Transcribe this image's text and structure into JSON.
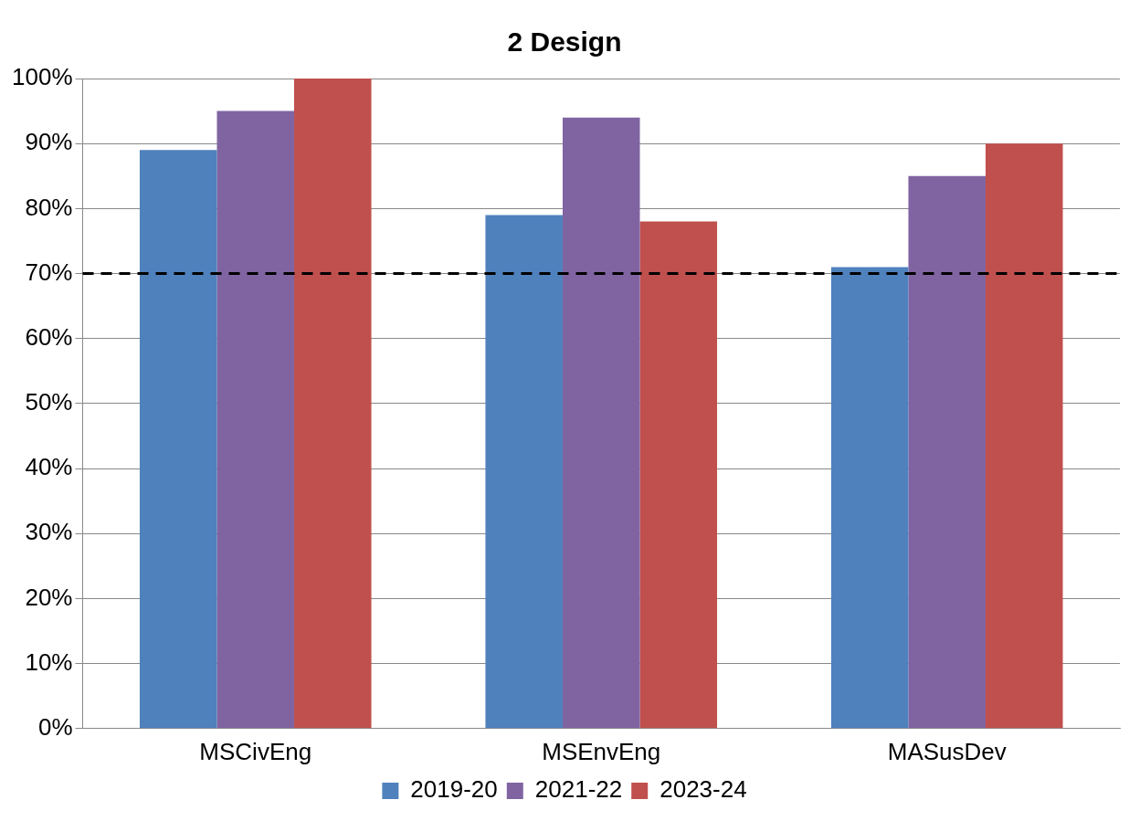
{
  "chart_data": {
    "type": "bar",
    "title": "2 Design",
    "categories": [
      "MSCivEng",
      "MSEnvEng",
      "MASusDev"
    ],
    "series": [
      {
        "name": "2019-20",
        "color": "#4f81bd",
        "values": [
          89,
          79,
          71
        ]
      },
      {
        "name": "2021-22",
        "color": "#8064a2",
        "values": [
          95,
          94,
          85
        ]
      },
      {
        "name": "2023-24",
        "color": "#c0504d",
        "values": [
          100,
          78,
          90
        ]
      }
    ],
    "ylim": [
      0,
      100
    ],
    "yticks": [
      {
        "value": 0,
        "label": "0%"
      },
      {
        "value": 10,
        "label": "10%"
      },
      {
        "value": 20,
        "label": "20%"
      },
      {
        "value": 30,
        "label": "30%"
      },
      {
        "value": 40,
        "label": "40%"
      },
      {
        "value": 50,
        "label": "50%"
      },
      {
        "value": 60,
        "label": "60%"
      },
      {
        "value": 70,
        "label": "70%"
      },
      {
        "value": 80,
        "label": "80%"
      },
      {
        "value": 90,
        "label": "90%"
      },
      {
        "value": 100,
        "label": "100%"
      }
    ],
    "ref_lines": [
      {
        "axis": "y",
        "value": 70,
        "color": "#000000",
        "line_style": "dashed"
      }
    ],
    "grid": "y",
    "legend": "bottom"
  }
}
